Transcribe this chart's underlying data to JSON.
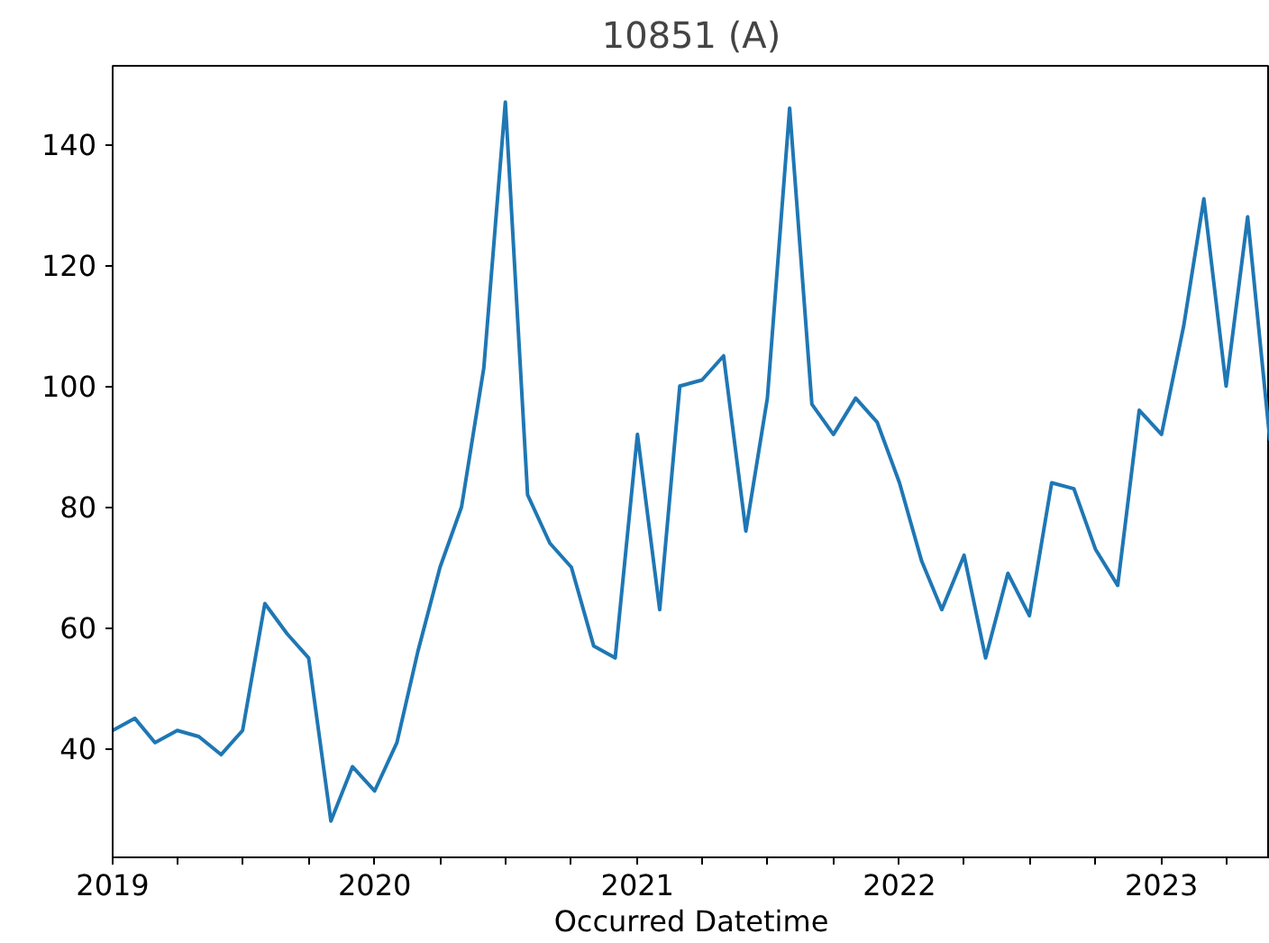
{
  "chart_data": {
    "type": "line",
    "title": "10851 (A)",
    "xlabel": "Occurred Datetime",
    "x": [
      "2019-01",
      "2019-02",
      "2019-03",
      "2019-04",
      "2019-05",
      "2019-06",
      "2019-07",
      "2019-08",
      "2019-09",
      "2019-10",
      "2019-11",
      "2019-12",
      "2020-01",
      "2020-02",
      "2020-03",
      "2020-04",
      "2020-05",
      "2020-06",
      "2020-07",
      "2020-08",
      "2020-09",
      "2020-10",
      "2020-11",
      "2020-12",
      "2021-01",
      "2021-02",
      "2021-03",
      "2021-04",
      "2021-05",
      "2021-06",
      "2021-07",
      "2021-08",
      "2021-09",
      "2021-10",
      "2021-11",
      "2021-12",
      "2022-01",
      "2022-02",
      "2022-03",
      "2022-04",
      "2022-05",
      "2022-06",
      "2022-07",
      "2022-08",
      "2022-09",
      "2022-10",
      "2022-11",
      "2022-12",
      "2023-01",
      "2023-02",
      "2023-03",
      "2023-04",
      "2023-05",
      "2023-06"
    ],
    "series": [
      {
        "color": "#1f77b4",
        "values": [
          43,
          45,
          41,
          43,
          42,
          39,
          43,
          64,
          59,
          55,
          28,
          37,
          33,
          41,
          56,
          70,
          80,
          103,
          147,
          82,
          74,
          70,
          57,
          55,
          92,
          63,
          100,
          101,
          105,
          76,
          98,
          146,
          97,
          92,
          98,
          94,
          84,
          71,
          63,
          72,
          55,
          69,
          62,
          84,
          83,
          73,
          67,
          96,
          92,
          110,
          131,
          100,
          128,
          91
        ]
      }
    ],
    "xlim": [
      "2019-01",
      "2023-06"
    ],
    "ylim": [
      22,
      153
    ],
    "xticks": [
      {
        "value": "2019-01",
        "label": "2019"
      },
      {
        "value": "2019-04",
        "label": null
      },
      {
        "value": "2019-07",
        "label": null
      },
      {
        "value": "2019-10",
        "label": null
      },
      {
        "value": "2020-01",
        "label": "2020"
      },
      {
        "value": "2020-04",
        "label": null
      },
      {
        "value": "2020-07",
        "label": null
      },
      {
        "value": "2020-10",
        "label": null
      },
      {
        "value": "2021-01",
        "label": "2021"
      },
      {
        "value": "2021-04",
        "label": null
      },
      {
        "value": "2021-07",
        "label": null
      },
      {
        "value": "2021-10",
        "label": null
      },
      {
        "value": "2022-01",
        "label": "2022"
      },
      {
        "value": "2022-04",
        "label": null
      },
      {
        "value": "2022-07",
        "label": null
      },
      {
        "value": "2022-10",
        "label": null
      },
      {
        "value": "2023-01",
        "label": "2023"
      },
      {
        "value": "2023-04",
        "label": null
      }
    ],
    "yticks": [
      40,
      60,
      80,
      100,
      120,
      140
    ],
    "grid": false,
    "marker": "none",
    "line_style": "solid"
  }
}
